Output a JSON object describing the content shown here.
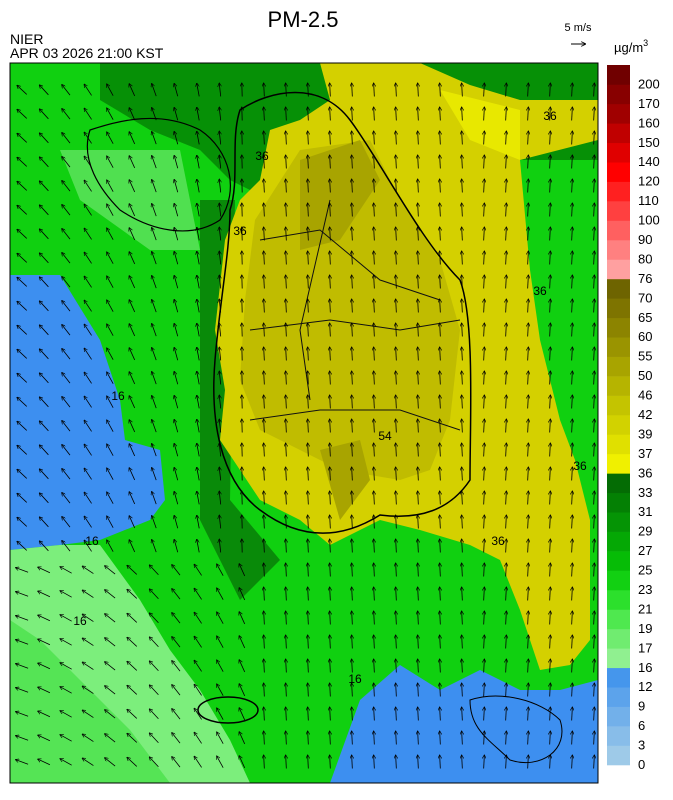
{
  "header": {
    "title": "PM-2.5",
    "agency": "NIER",
    "timestamp": "APR 03 2026 21:00 KST",
    "wind_scale": "5 m/s",
    "unit": "µg/m",
    "unit_exp": "3"
  },
  "colorbar": {
    "levels": [
      0,
      3,
      6,
      9,
      12,
      16,
      17,
      19,
      21,
      23,
      25,
      27,
      29,
      31,
      33,
      36,
      37,
      39,
      42,
      46,
      50,
      55,
      60,
      65,
      70,
      76,
      80,
      90,
      100,
      110,
      120,
      140,
      150,
      160,
      170,
      200
    ],
    "colors": [
      "#9ecae8",
      "#88bde9",
      "#72b0ea",
      "#5ca3eb",
      "#4596ec",
      "#90f090",
      "#70ec70",
      "#4fe84f",
      "#2ce02c",
      "#12d012",
      "#06bc06",
      "#05a805",
      "#059405",
      "#048004",
      "#046c04",
      "#f0f000",
      "#e0e000",
      "#d2d200",
      "#c4c400",
      "#b6b400",
      "#a8a400",
      "#9a9400",
      "#8c8400",
      "#7e7400",
      "#6e6400",
      "#ffa0a0",
      "#ff8080",
      "#ff6060",
      "#ff4040",
      "#ff2020",
      "#ff0000",
      "#e00000",
      "#c00000",
      "#a00000",
      "#880000",
      "#700000"
    ]
  },
  "map": {
    "contour_labels": [
      "36",
      "36",
      "36",
      "36",
      "36",
      "36",
      "54",
      "16",
      "16",
      "16",
      "16"
    ]
  }
}
